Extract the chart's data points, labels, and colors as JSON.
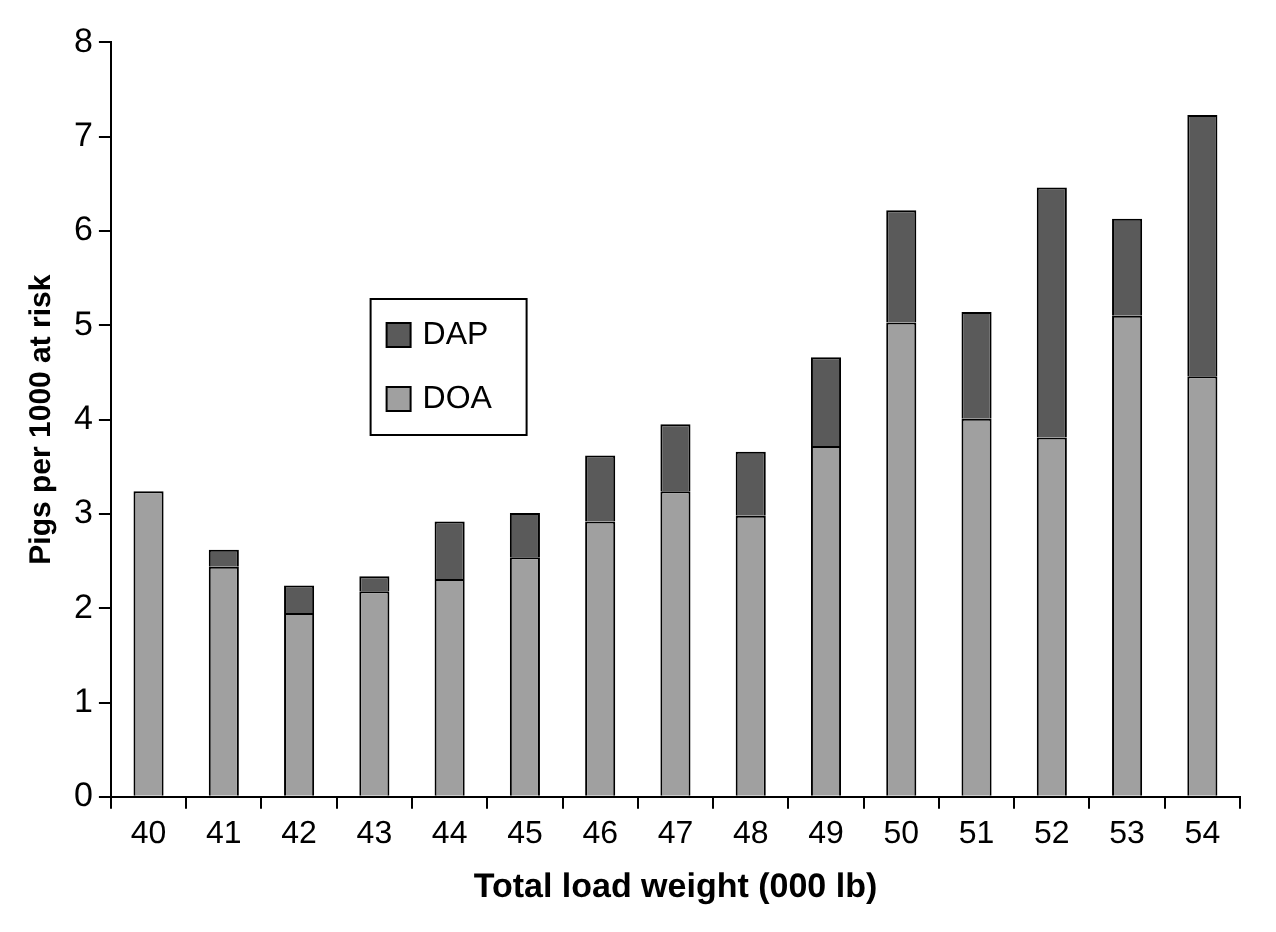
{
  "chart_data": {
    "type": "bar",
    "xlabel": "Total load weight (000 lb)",
    "ylabel": "Pigs per 1000 at risk",
    "categories": [
      "40",
      "41",
      "42",
      "43",
      "44",
      "45",
      "46",
      "47",
      "48",
      "49",
      "50",
      "51",
      "52",
      "53",
      "54"
    ],
    "series": [
      {
        "name": "DOA",
        "color": "#a0a0a0",
        "values": [
          3.24,
          2.44,
          1.95,
          2.18,
          2.31,
          2.54,
          2.92,
          3.24,
          2.98,
          3.72,
          5.03,
          4.01,
          3.81,
          5.1,
          4.46
        ]
      },
      {
        "name": "DAP",
        "color": "#5a5a5a",
        "values": [
          0,
          0.18,
          0.29,
          0.16,
          0.61,
          0.47,
          0.7,
          0.71,
          0.68,
          0.94,
          1.19,
          1.13,
          2.65,
          1.03,
          2.77
        ]
      }
    ],
    "stacked": true,
    "ylim": [
      0,
      8
    ],
    "yticks": [
      0,
      1,
      2,
      3,
      4,
      5,
      6,
      7,
      8
    ],
    "grid": false,
    "legend": "left"
  }
}
